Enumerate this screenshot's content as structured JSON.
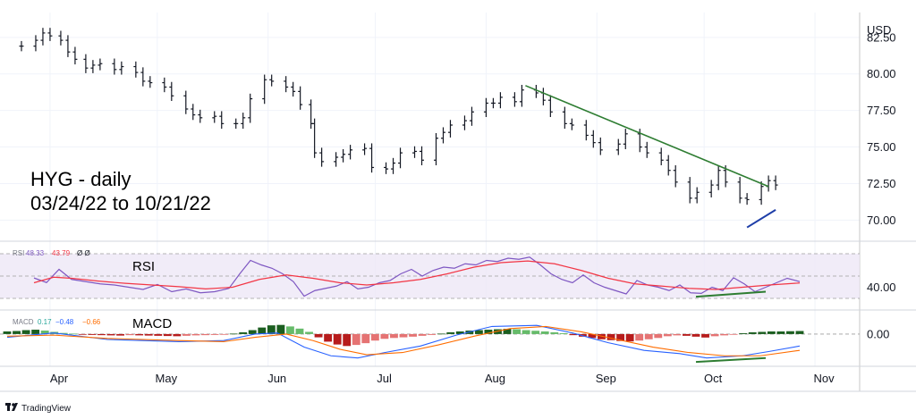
{
  "chart_data": {
    "type": "bar",
    "title": "HYG - daily",
    "subtitle": "03/24/22 to 10/21/22",
    "currency": "USD",
    "brand": "TradingView",
    "price_axis": {
      "ticks": [
        "82.50",
        "80.00",
        "77.50",
        "75.00",
        "72.50",
        "70.00"
      ],
      "ylim": [
        68.8,
        84.2
      ]
    },
    "months": [
      "Apr",
      "May",
      "Jun",
      "Jul",
      "Aug",
      "Sep",
      "Oct",
      "Nov"
    ],
    "price_series": [
      {
        "d": "2022-03-24",
        "c": 81.9
      },
      {
        "d": "2022-03-28",
        "c": 82.3
      },
      {
        "d": "2022-03-30",
        "c": 82.8
      },
      {
        "d": "2022-04-01",
        "c": 82.6
      },
      {
        "d": "2022-04-04",
        "c": 82.3
      },
      {
        "d": "2022-04-06",
        "c": 81.5
      },
      {
        "d": "2022-04-08",
        "c": 81.0
      },
      {
        "d": "2022-04-11",
        "c": 80.4
      },
      {
        "d": "2022-04-13",
        "c": 80.6
      },
      {
        "d": "2022-04-15",
        "c": 80.7
      },
      {
        "d": "2022-04-19",
        "c": 80.3
      },
      {
        "d": "2022-04-21",
        "c": 80.5
      },
      {
        "d": "2022-04-25",
        "c": 80.1
      },
      {
        "d": "2022-04-27",
        "c": 79.5
      },
      {
        "d": "2022-04-29",
        "c": 79.4
      },
      {
        "d": "2022-05-03",
        "c": 79.1
      },
      {
        "d": "2022-05-05",
        "c": 78.5
      },
      {
        "d": "2022-05-09",
        "c": 77.6
      },
      {
        "d": "2022-05-11",
        "c": 77.2
      },
      {
        "d": "2022-05-13",
        "c": 77.0
      },
      {
        "d": "2022-05-17",
        "c": 77.1
      },
      {
        "d": "2022-05-19",
        "c": 76.6
      },
      {
        "d": "2022-05-23",
        "c": 76.6
      },
      {
        "d": "2022-05-25",
        "c": 77.0
      },
      {
        "d": "2022-05-27",
        "c": 78.3
      },
      {
        "d": "2022-05-31",
        "c": 79.6
      },
      {
        "d": "2022-06-02",
        "c": 79.5
      },
      {
        "d": "2022-06-06",
        "c": 79.1
      },
      {
        "d": "2022-06-08",
        "c": 78.8
      },
      {
        "d": "2022-06-10",
        "c": 77.9
      },
      {
        "d": "2022-06-13",
        "c": 76.6
      },
      {
        "d": "2022-06-14",
        "c": 74.6
      },
      {
        "d": "2022-06-16",
        "c": 74.0
      },
      {
        "d": "2022-06-20",
        "c": 74.3
      },
      {
        "d": "2022-06-22",
        "c": 74.5
      },
      {
        "d": "2022-06-24",
        "c": 74.8
      },
      {
        "d": "2022-06-28",
        "c": 74.9
      },
      {
        "d": "2022-06-30",
        "c": 73.6
      },
      {
        "d": "2022-07-04",
        "c": 73.5
      },
      {
        "d": "2022-07-06",
        "c": 73.9
      },
      {
        "d": "2022-07-08",
        "c": 74.6
      },
      {
        "d": "2022-07-12",
        "c": 74.7
      },
      {
        "d": "2022-07-14",
        "c": 74.1
      },
      {
        "d": "2022-07-18",
        "c": 75.6
      },
      {
        "d": "2022-07-20",
        "c": 76.0
      },
      {
        "d": "2022-07-22",
        "c": 76.5
      },
      {
        "d": "2022-07-26",
        "c": 76.8
      },
      {
        "d": "2022-07-28",
        "c": 77.4
      },
      {
        "d": "2022-08-01",
        "c": 78.0
      },
      {
        "d": "2022-08-03",
        "c": 78.0
      },
      {
        "d": "2022-08-05",
        "c": 78.4
      },
      {
        "d": "2022-08-09",
        "c": 78.1
      },
      {
        "d": "2022-08-11",
        "c": 78.9
      },
      {
        "d": "2022-08-15",
        "c": 78.7
      },
      {
        "d": "2022-08-17",
        "c": 78.2
      },
      {
        "d": "2022-08-19",
        "c": 77.4
      },
      {
        "d": "2022-08-23",
        "c": 76.6
      },
      {
        "d": "2022-08-25",
        "c": 76.5
      },
      {
        "d": "2022-08-29",
        "c": 75.8
      },
      {
        "d": "2022-08-31",
        "c": 75.3
      },
      {
        "d": "2022-09-02",
        "c": 74.8
      },
      {
        "d": "2022-09-07",
        "c": 75.2
      },
      {
        "d": "2022-09-09",
        "c": 75.9
      },
      {
        "d": "2022-09-13",
        "c": 75.0
      },
      {
        "d": "2022-09-15",
        "c": 74.6
      },
      {
        "d": "2022-09-19",
        "c": 74.1
      },
      {
        "d": "2022-09-21",
        "c": 73.4
      },
      {
        "d": "2022-09-23",
        "c": 72.6
      },
      {
        "d": "2022-09-27",
        "c": 71.5
      },
      {
        "d": "2022-09-29",
        "c": 71.9
      },
      {
        "d": "2022-10-03",
        "c": 72.4
      },
      {
        "d": "2022-10-05",
        "c": 73.4
      },
      {
        "d": "2022-10-07",
        "c": 72.6
      },
      {
        "d": "2022-10-11",
        "c": 71.5
      },
      {
        "d": "2022-10-13",
        "c": 71.4
      },
      {
        "d": "2022-10-17",
        "c": 72.3
      },
      {
        "d": "2022-10-19",
        "c": 72.7
      },
      {
        "d": "2022-10-21",
        "c": 72.4
      }
    ],
    "price_trendline": {
      "from": [
        "2022-08-12",
        79.2
      ],
      "to": [
        "2022-10-19",
        72.3
      ],
      "color": "#2e7d32"
    },
    "price_support_line": {
      "from": [
        "2022-10-13",
        69.5
      ],
      "to": [
        "2022-10-21",
        70.7
      ],
      "color": "#1e3ea8"
    },
    "rsi": {
      "label": "RSI",
      "legend": {
        "name": "RSI",
        "values": [
          "48.33",
          "43.79"
        ],
        "extra": "Ø  Ø"
      },
      "tick": "40.00",
      "ylim": [
        22,
        78
      ],
      "band": [
        30,
        70
      ],
      "series": [
        {
          "name": "RSI",
          "color": "#7e57c2",
          "values": [
            [
              38,
              48.3
            ],
            [
              52,
              44.2
            ],
            [
              66,
              56.0
            ],
            [
              80,
              47.0
            ],
            [
              96,
              45.0
            ],
            [
              112,
              43.0
            ],
            [
              128,
              42.0
            ],
            [
              144,
              40.0
            ],
            [
              160,
              38.0
            ],
            [
              176,
              42.5
            ],
            [
              192,
              36.0
            ],
            [
              208,
              38.5
            ],
            [
              224,
              35.0
            ],
            [
              240,
              36.0
            ],
            [
              256,
              39.0
            ],
            [
              268,
              52.0
            ],
            [
              280,
              64.0
            ],
            [
              292,
              60.0
            ],
            [
              304,
              57.0
            ],
            [
              316,
              52.0
            ],
            [
              328,
              45.0
            ],
            [
              340,
              32.0
            ],
            [
              352,
              37.0
            ],
            [
              364,
              39.0
            ],
            [
              376,
              41.0
            ],
            [
              388,
              45.0
            ],
            [
              400,
              38.5
            ],
            [
              412,
              40.0
            ],
            [
              424,
              44.0
            ],
            [
              436,
              46.0
            ],
            [
              448,
              52.0
            ],
            [
              460,
              56.0
            ],
            [
              472,
              50.0
            ],
            [
              484,
              55.0
            ],
            [
              496,
              58.0
            ],
            [
              508,
              57.0
            ],
            [
              520,
              61.0
            ],
            [
              532,
              60.0
            ],
            [
              544,
              64.0
            ],
            [
              556,
              63.0
            ],
            [
              568,
              66.0
            ],
            [
              580,
              65.0
            ],
            [
              592,
              67.0
            ],
            [
              604,
              60.0
            ],
            [
              616,
              52.0
            ],
            [
              628,
              47.0
            ],
            [
              640,
              44.0
            ],
            [
              652,
              51.0
            ],
            [
              664,
              44.0
            ],
            [
              676,
              40.0
            ],
            [
              688,
              37.0
            ],
            [
              700,
              34.0
            ],
            [
              712,
              46.0
            ],
            [
              724,
              42.0
            ],
            [
              736,
              40.0
            ],
            [
              748,
              37.0
            ],
            [
              760,
              42.0
            ],
            [
              772,
              35.0
            ],
            [
              784,
              34.5
            ],
            [
              796,
              40.0
            ],
            [
              808,
              37.0
            ],
            [
              820,
              48.5
            ],
            [
              832,
              43.0
            ],
            [
              844,
              36.0
            ],
            [
              856,
              40.0
            ],
            [
              868,
              44.0
            ],
            [
              880,
              48.0
            ],
            [
              894,
              45.0
            ]
          ]
        },
        {
          "name": "RSI MA",
          "color": "#f23645",
          "values": [
            [
              38,
              44.0
            ],
            [
              60,
              49.0
            ],
            [
              80,
              48.0
            ],
            [
              110,
              45.5
            ],
            [
              140,
              43.5
            ],
            [
              170,
              42.0
            ],
            [
              200,
              40.5
            ],
            [
              230,
              38.5
            ],
            [
              260,
              40.0
            ],
            [
              290,
              47.0
            ],
            [
              320,
              51.0
            ],
            [
              350,
              48.0
            ],
            [
              380,
              44.0
            ],
            [
              410,
              42.0
            ],
            [
              440,
              44.0
            ],
            [
              470,
              47.0
            ],
            [
              500,
              52.0
            ],
            [
              530,
              58.0
            ],
            [
              560,
              62.0
            ],
            [
              590,
              63.5
            ],
            [
              620,
              61.0
            ],
            [
              650,
              55.0
            ],
            [
              680,
              48.0
            ],
            [
              710,
              43.0
            ],
            [
              740,
              41.0
            ],
            [
              770,
              39.0
            ],
            [
              800,
              38.0
            ],
            [
              830,
              40.0
            ],
            [
              860,
              42.0
            ],
            [
              894,
              43.8
            ]
          ]
        }
      ],
      "divergence_line": {
        "from": [
          778,
          31.5
        ],
        "to": [
          856,
          36.0
        ],
        "color": "#2e7d32"
      }
    },
    "macd": {
      "label": "MACD",
      "legend": {
        "name": "MACD",
        "values": [
          "0.17",
          "−0.48",
          "−0.66"
        ]
      },
      "tick": "0.00",
      "ylim": [
        -1.4,
        0.9
      ],
      "histogram": [
        0.12,
        0.14,
        0.18,
        0.2,
        0.16,
        0.1,
        0.05,
        0.02,
        -0.02,
        -0.04,
        -0.05,
        -0.06,
        -0.07,
        -0.05,
        -0.06,
        -0.07,
        -0.08,
        -0.09,
        -0.1,
        -0.08,
        -0.06,
        -0.05,
        -0.04,
        -0.03,
        0.02,
        0.08,
        0.18,
        0.3,
        0.4,
        0.42,
        0.35,
        0.25,
        0.1,
        -0.15,
        -0.35,
        -0.48,
        -0.55,
        -0.5,
        -0.42,
        -0.3,
        -0.22,
        -0.18,
        -0.15,
        -0.12,
        -0.08,
        -0.04,
        0.02,
        0.08,
        0.12,
        0.16,
        0.18,
        0.2,
        0.22,
        0.24,
        0.22,
        0.18,
        0.15,
        0.12,
        0.08,
        0.04,
        -0.05,
        -0.12,
        -0.18,
        -0.24,
        -0.28,
        -0.32,
        -0.34,
        -0.3,
        -0.24,
        -0.18,
        -0.1,
        -0.06,
        -0.08,
        -0.12,
        -0.16,
        -0.1,
        -0.06,
        -0.02,
        0.04,
        0.08,
        0.1,
        0.12,
        0.12,
        0.13,
        0.14
      ],
      "lines": [
        {
          "name": "MACD",
          "color": "#2962ff",
          "values": [
            [
              8,
              -0.15
            ],
            [
              60,
              0.05
            ],
            [
              120,
              -0.25
            ],
            [
              200,
              -0.35
            ],
            [
              250,
              -0.3
            ],
            [
              285,
              0.0
            ],
            [
              310,
              0.05
            ],
            [
              340,
              -0.6
            ],
            [
              370,
              -1.0
            ],
            [
              400,
              -1.1
            ],
            [
              430,
              -0.85
            ],
            [
              470,
              -0.55
            ],
            [
              510,
              -0.05
            ],
            [
              550,
              0.35
            ],
            [
              600,
              0.4
            ],
            [
              640,
              0.05
            ],
            [
              680,
              -0.4
            ],
            [
              720,
              -0.75
            ],
            [
              760,
              -0.9
            ],
            [
              790,
              -1.1
            ],
            [
              830,
              -1.0
            ],
            [
              860,
              -0.8
            ],
            [
              894,
              -0.55
            ]
          ]
        },
        {
          "name": "Signal",
          "color": "#ff6d00",
          "values": [
            [
              8,
              -0.1
            ],
            [
              60,
              -0.05
            ],
            [
              120,
              -0.2
            ],
            [
              200,
              -0.3
            ],
            [
              250,
              -0.35
            ],
            [
              285,
              -0.15
            ],
            [
              320,
              0.0
            ],
            [
              350,
              -0.3
            ],
            [
              380,
              -0.7
            ],
            [
              410,
              -0.95
            ],
            [
              450,
              -0.85
            ],
            [
              490,
              -0.5
            ],
            [
              530,
              -0.1
            ],
            [
              570,
              0.25
            ],
            [
              610,
              0.35
            ],
            [
              650,
              0.1
            ],
            [
              690,
              -0.25
            ],
            [
              730,
              -0.6
            ],
            [
              770,
              -0.85
            ],
            [
              810,
              -1.0
            ],
            [
              850,
              -1.0
            ],
            [
              894,
              -0.75
            ]
          ]
        }
      ],
      "divergence_line": {
        "from": [
          778,
          -1.28
        ],
        "to": [
          856,
          -1.1
        ],
        "color": "#2e7d32"
      }
    }
  }
}
